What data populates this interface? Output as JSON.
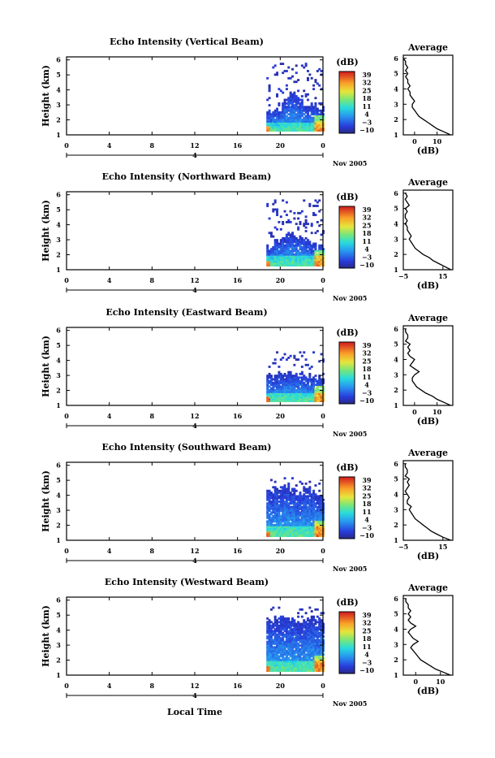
{
  "figure": {
    "xlabel": "Local Time",
    "date_label": "Nov 2005",
    "day_label": "4",
    "colorbar_unit": "(dB)",
    "avg_title": "Average",
    "avg_xlabel": "(dB)",
    "ylabel": "Height (km)"
  },
  "chart_data": [
    {
      "type": "heatmap",
      "title": "Echo Intensity (Vertical Beam)",
      "xlabel": "",
      "ylabel": "Height (km)",
      "xticks": [
        "0",
        "4",
        "8",
        "12",
        "16",
        "20",
        "0"
      ],
      "yticks": [
        "1",
        "2",
        "3",
        "4",
        "5",
        "6"
      ],
      "xlim": [
        0,
        24
      ],
      "ylim": [
        1,
        6.2
      ],
      "colorbar_ticks": [
        "39",
        "32",
        "25",
        "18",
        "11",
        "4",
        "−3",
        "−10"
      ],
      "colorbar_range": [
        -10,
        40
      ],
      "data_time_range": [
        18.7,
        24
      ],
      "top_height_profile": [
        2.4,
        2.7,
        3.3,
        3.6,
        3.5,
        3.0,
        3.0,
        2.7
      ],
      "scattered_echo_top": 5.7,
      "core_top": 1.8,
      "average_profile": {
        "title": "Average",
        "xlabel": "(dB)",
        "xticks": [
          "0",
          "10"
        ],
        "xlim": [
          -5,
          17
        ],
        "heights": [
          1.0,
          1.2,
          1.4,
          1.6,
          1.8,
          2.0,
          2.2,
          2.4,
          2.6,
          2.8,
          3.0,
          3.2,
          3.4,
          3.6,
          3.8,
          4.0,
          4.2,
          4.4,
          4.6,
          4.8,
          5.0,
          5.2,
          5.4,
          5.6,
          5.8,
          6.0
        ],
        "values": [
          16,
          13,
          10,
          8,
          6,
          4,
          2,
          1,
          0,
          -1,
          -1,
          0,
          -1,
          -2,
          -2,
          -3,
          -2,
          -3,
          -3,
          -4,
          -3,
          -4,
          -3,
          -4,
          -4,
          -5
        ]
      }
    },
    {
      "type": "heatmap",
      "title": "Echo Intensity (Northward Beam)",
      "xlabel": "",
      "ylabel": "Height (km)",
      "xticks": [
        "0",
        "4",
        "8",
        "12",
        "16",
        "20",
        "0"
      ],
      "yticks": [
        "1",
        "2",
        "3",
        "4",
        "5",
        "6"
      ],
      "xlim": [
        0,
        24
      ],
      "ylim": [
        1,
        6.2
      ],
      "colorbar_ticks": [
        "39",
        "32",
        "25",
        "18",
        "11",
        "4",
        "−3",
        "−10"
      ],
      "colorbar_range": [
        -10,
        40
      ],
      "data_time_range": [
        18.7,
        24
      ],
      "top_height_profile": [
        2.5,
        3.0,
        3.3,
        3.3,
        3.1,
        3.0,
        2.7,
        2.5
      ],
      "scattered_echo_top": 5.6,
      "core_top": 1.9,
      "average_profile": {
        "title": "Average",
        "xlabel": "(dB)",
        "xticks": [
          "−5",
          "15"
        ],
        "xlim": [
          -5,
          20
        ],
        "heights": [
          1.0,
          1.2,
          1.4,
          1.6,
          1.8,
          2.0,
          2.2,
          2.4,
          2.6,
          2.8,
          3.0,
          3.2,
          3.4,
          3.6,
          3.8,
          4.0,
          4.2,
          4.4,
          4.6,
          4.8,
          5.0,
          5.2,
          5.4,
          5.6,
          5.8,
          6.0
        ],
        "values": [
          19,
          16,
          13,
          10,
          8,
          5,
          3,
          1,
          0,
          -1,
          -2,
          -1,
          -2,
          -3,
          -3,
          -4,
          -3,
          -4,
          -4,
          -3,
          -4,
          -2,
          -3,
          -4,
          -3,
          -4
        ]
      }
    },
    {
      "type": "heatmap",
      "title": "Echo Intensity (Eastward Beam)",
      "xlabel": "",
      "ylabel": "Height (km)",
      "xticks": [
        "0",
        "4",
        "8",
        "12",
        "16",
        "20",
        "0"
      ],
      "yticks": [
        "1",
        "2",
        "3",
        "4",
        "5",
        "6"
      ],
      "xlim": [
        0,
        24
      ],
      "ylim": [
        1,
        6.2
      ],
      "colorbar_ticks": [
        "39",
        "32",
        "25",
        "18",
        "11",
        "4",
        "−3",
        "−10"
      ],
      "colorbar_range": [
        -10,
        40
      ],
      "data_time_range": [
        18.7,
        24
      ],
      "top_height_profile": [
        2.9,
        3.1,
        3.2,
        3.1,
        3.0,
        2.9,
        3.0,
        2.8
      ],
      "scattered_echo_top": 4.6,
      "core_top": 1.8,
      "average_profile": {
        "title": "Average",
        "xlabel": "(dB)",
        "xticks": [
          "0",
          "10"
        ],
        "xlim": [
          -5,
          17
        ],
        "heights": [
          1.0,
          1.2,
          1.4,
          1.6,
          1.8,
          2.0,
          2.2,
          2.4,
          2.6,
          2.8,
          3.0,
          3.2,
          3.4,
          3.6,
          3.8,
          4.0,
          4.2,
          4.4,
          4.6,
          4.8,
          5.0,
          5.2,
          5.4,
          5.6,
          5.8,
          6.0
        ],
        "values": [
          16,
          13,
          10,
          8,
          5,
          3,
          1,
          0,
          -1,
          -1,
          0,
          2,
          0,
          -2,
          -1,
          0,
          -2,
          -3,
          -2,
          -3,
          -2,
          -4,
          -3,
          -3,
          -4,
          -4
        ]
      }
    },
    {
      "type": "heatmap",
      "title": "Echo Intensity (Southward Beam)",
      "xlabel": "",
      "ylabel": "Height (km)",
      "xticks": [
        "0",
        "4",
        "8",
        "12",
        "16",
        "20",
        "0"
      ],
      "yticks": [
        "1",
        "2",
        "3",
        "4",
        "5",
        "6"
      ],
      "xlim": [
        0,
        24
      ],
      "ylim": [
        1,
        6.2
      ],
      "colorbar_ticks": [
        "39",
        "32",
        "25",
        "18",
        "11",
        "4",
        "−3",
        "−10"
      ],
      "colorbar_range": [
        -10,
        40
      ],
      "data_time_range": [
        18.7,
        24
      ],
      "top_height_profile": [
        4.2,
        4.5,
        4.6,
        4.3,
        4.1,
        4.4,
        4.2,
        3.8
      ],
      "scattered_echo_top": 5.2,
      "core_top": 1.9,
      "average_profile": {
        "title": "Average",
        "xlabel": "(dB)",
        "xticks": [
          "−5",
          "15"
        ],
        "xlim": [
          -5,
          20
        ],
        "heights": [
          1.0,
          1.2,
          1.4,
          1.6,
          1.8,
          2.0,
          2.2,
          2.4,
          2.6,
          2.8,
          3.0,
          3.2,
          3.4,
          3.6,
          3.8,
          4.0,
          4.2,
          4.4,
          4.6,
          4.8,
          5.0,
          5.2,
          5.4,
          5.6,
          5.8,
          6.0
        ],
        "values": [
          19,
          15,
          12,
          9,
          7,
          5,
          3,
          1,
          0,
          -1,
          -2,
          -1,
          -3,
          -3,
          -2,
          -3,
          -4,
          -3,
          -2,
          -3,
          -2,
          -4,
          -3,
          -3,
          -4,
          -4
        ]
      }
    },
    {
      "type": "heatmap",
      "title": "Echo Intensity (Westward Beam)",
      "xlabel": "Local Time",
      "ylabel": "Height (km)",
      "xticks": [
        "0",
        "4",
        "8",
        "12",
        "16",
        "20",
        "0"
      ],
      "yticks": [
        "1",
        "2",
        "3",
        "4",
        "5",
        "6"
      ],
      "xlim": [
        0,
        24
      ],
      "ylim": [
        1,
        6.2
      ],
      "colorbar_ticks": [
        "39",
        "32",
        "25",
        "18",
        "11",
        "4",
        "−3",
        "−10"
      ],
      "colorbar_range": [
        -10,
        40
      ],
      "data_time_range": [
        18.7,
        24
      ],
      "top_height_profile": [
        4.6,
        4.8,
        4.8,
        4.7,
        4.6,
        4.7,
        4.8,
        4.6
      ],
      "scattered_echo_top": 5.5,
      "core_top": 1.9,
      "average_profile": {
        "title": "Average",
        "xlabel": "(dB)",
        "xticks": [
          "0",
          "10"
        ],
        "xlim": [
          -5,
          15
        ],
        "heights": [
          1.0,
          1.2,
          1.4,
          1.6,
          1.8,
          2.0,
          2.2,
          2.4,
          2.6,
          2.8,
          3.0,
          3.2,
          3.4,
          3.6,
          3.8,
          4.0,
          4.2,
          4.4,
          4.6,
          4.8,
          5.0,
          5.2,
          5.4,
          5.6,
          5.8,
          6.0
        ],
        "values": [
          14,
          11,
          8,
          6,
          4,
          2,
          1,
          0,
          -1,
          -2,
          -1,
          1,
          -1,
          -2,
          -3,
          -2,
          0,
          -2,
          -3,
          -2,
          -3,
          -2,
          -3,
          -3,
          -4,
          -4
        ]
      }
    }
  ]
}
